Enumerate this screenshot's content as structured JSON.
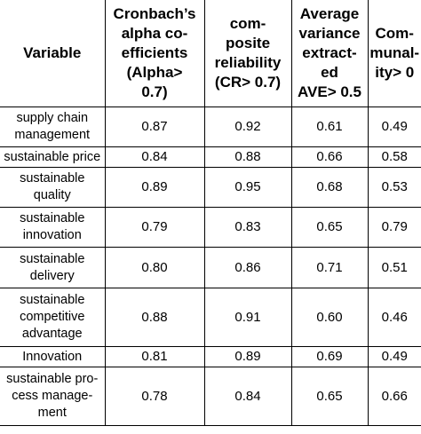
{
  "headers": {
    "variable": "Variable",
    "alpha": "Cronbach’s\nalpha co-\nefficients\n(Alpha>\n0.7)",
    "cr": "com-\nposite\nreliability\n(CR> 0.7)",
    "ave": "Average\nvariance\nextract-\ned\nAVE> 0.5",
    "comm": "Com-\nmunal-\nity> 0"
  },
  "rows": [
    {
      "variable": "supply chain\nmanagement",
      "alpha": "0.87",
      "cr": "0.92",
      "ave": "0.61",
      "comm": "0.49"
    },
    {
      "variable": "sustainable price",
      "alpha": "0.84",
      "cr": "0.88",
      "ave": "0.66",
      "comm": "0.58"
    },
    {
      "variable": "sustainable\nquality",
      "alpha": "0.89",
      "cr": "0.95",
      "ave": "0.68",
      "comm": "0.53"
    },
    {
      "variable": "sustainable\ninnovation",
      "alpha": "0.79",
      "cr": "0.83",
      "ave": "0.65",
      "comm": "0.79"
    },
    {
      "variable": "sustainable\ndelivery",
      "alpha": "0.80",
      "cr": "0.86",
      "ave": "0.71",
      "comm": "0.51"
    },
    {
      "variable": "sustainable\ncompetitive\nadvantage",
      "alpha": "0.88",
      "cr": "0.91",
      "ave": "0.60",
      "comm": "0.46"
    },
    {
      "variable": "Innovation",
      "alpha": "0.81",
      "cr": "0.89",
      "ave": "0.69",
      "comm": "0.49"
    },
    {
      "variable": "sustainable pro-\ncess manage-\nment",
      "alpha": "0.78",
      "cr": "0.84",
      "ave": "0.65",
      "comm": "0.66"
    }
  ]
}
